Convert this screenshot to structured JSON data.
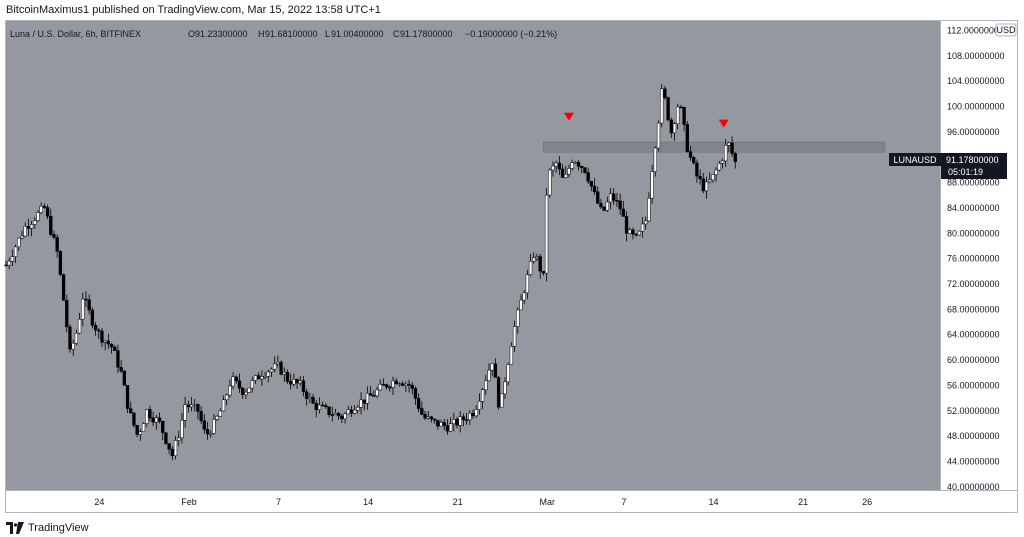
{
  "header": {
    "published": "BitcoinMaximus1 published on TradingView.com, Mar 15, 2022 13:58 UTC+1"
  },
  "footer": {
    "brand": "TradingView"
  },
  "colors": {
    "background": "#9598a1",
    "zone": "#7d8089",
    "marker": "#ff0000",
    "up": "#ffffff",
    "down": "#000000"
  },
  "chart_data": {
    "type": "candlestick",
    "symbol": "Luna / U.S. Dollar, 6h, BITFINEX",
    "ohlc_label": {
      "O": "O",
      "o": "91.23300000",
      "H": "H",
      "h": "91.68100000",
      "L": "L",
      "l": "91.00400000",
      "C": "C",
      "c": "91.17800000",
      "change": "−0.19000000 (−0.21%)"
    },
    "currency": "USD",
    "price_label": {
      "ticker": "LUNAUSD",
      "price": "91.17800000",
      "countdown": "05:01:19"
    },
    "y_ticks": [
      "40.00000000",
      "44.00000000",
      "48.00000000",
      "52.00000000",
      "56.00000000",
      "60.00000000",
      "64.00000000",
      "68.00000000",
      "72.00000000",
      "76.00000000",
      "80.00000000",
      "84.00000000",
      "88.00000000",
      "92.00000000",
      "96.00000000",
      "100.00000000",
      "104.00000000",
      "108.00000000",
      "112.00000000"
    ],
    "ylim": [
      39.5,
      113.5
    ],
    "x_ticks": [
      {
        "label": "24",
        "t": 3.3
      },
      {
        "label": "Feb",
        "t": 10.3
      },
      {
        "label": "7",
        "t": 17.3
      },
      {
        "label": "14",
        "t": 24.3
      },
      {
        "label": "21",
        "t": 31.3
      },
      {
        "label": "Mar",
        "t": 38.3
      },
      {
        "label": "7",
        "t": 44.3
      },
      {
        "label": "14",
        "t": 51.3
      },
      {
        "label": "21",
        "t": 58.3
      },
      {
        "label": "26",
        "t": 63.3
      }
    ],
    "xlim": [
      -4.0,
      69.0
    ],
    "resistance_zone": {
      "low": 92.8,
      "high": 94.4,
      "from_t": 38.0,
      "to_t": 64.7
    },
    "markers": [
      {
        "t": 40.0,
        "price": 98.4
      },
      {
        "t": 52.1,
        "price": 97.3
      }
    ],
    "close_path": [
      [
        -4.0,
        75.0
      ],
      [
        -2.5,
        81.0
      ],
      [
        -1.0,
        84.0
      ],
      [
        0.0,
        77.0
      ],
      [
        0.6,
        68.0
      ],
      [
        1.0,
        61.0
      ],
      [
        1.6,
        65.0
      ],
      [
        2.0,
        70.0
      ],
      [
        2.8,
        66.0
      ],
      [
        3.3,
        64.0
      ],
      [
        4.3,
        62.0
      ],
      [
        5.0,
        58.0
      ],
      [
        5.6,
        52.0
      ],
      [
        6.3,
        48.0
      ],
      [
        7.0,
        52.0
      ],
      [
        8.0,
        50.0
      ],
      [
        8.6,
        47.0
      ],
      [
        9.0,
        45.0
      ],
      [
        9.6,
        49.0
      ],
      [
        10.0,
        53.0
      ],
      [
        11.0,
        52.0
      ],
      [
        11.6,
        48.0
      ],
      [
        12.3,
        50.0
      ],
      [
        13.0,
        53.0
      ],
      [
        13.6,
        57.0
      ],
      [
        14.6,
        55.0
      ],
      [
        16.0,
        58.0
      ],
      [
        17.3,
        59.0
      ],
      [
        18.0,
        57.0
      ],
      [
        19.0,
        56.0
      ],
      [
        20.0,
        53.0
      ],
      [
        21.0,
        52.0
      ],
      [
        22.3,
        51.0
      ],
      [
        23.3,
        53.0
      ],
      [
        24.3,
        54.0
      ],
      [
        25.6,
        56.0
      ],
      [
        26.6,
        57.0
      ],
      [
        27.6,
        56.0
      ],
      [
        28.6,
        51.0
      ],
      [
        29.6,
        50.0
      ],
      [
        30.6,
        49.5
      ],
      [
        31.6,
        50.5
      ],
      [
        32.6,
        52.0
      ],
      [
        33.3,
        56.0
      ],
      [
        34.0,
        60.0
      ],
      [
        34.6,
        52.0
      ],
      [
        35.0,
        57.0
      ],
      [
        35.6,
        64.0
      ],
      [
        36.6,
        72.0
      ],
      [
        37.3,
        77.0
      ],
      [
        38.0,
        73.0
      ],
      [
        38.3,
        89.0
      ],
      [
        39.0,
        91.0
      ],
      [
        39.6,
        88.0
      ],
      [
        40.3,
        92.0
      ],
      [
        41.3,
        90.0
      ],
      [
        42.0,
        86.0
      ],
      [
        42.6,
        83.0
      ],
      [
        43.3,
        86.0
      ],
      [
        44.0,
        84.0
      ],
      [
        44.6,
        80.0
      ],
      [
        45.3,
        79.0
      ],
      [
        46.0,
        82.0
      ],
      [
        46.6,
        92.0
      ],
      [
        47.0,
        98.0
      ],
      [
        47.3,
        103.0
      ],
      [
        48.0,
        96.0
      ],
      [
        48.6,
        101.0
      ],
      [
        49.3,
        93.0
      ],
      [
        50.0,
        89.0
      ],
      [
        50.6,
        87.0
      ],
      [
        51.3,
        89.0
      ],
      [
        52.0,
        92.0
      ],
      [
        52.4,
        94.5
      ],
      [
        53.0,
        91.2
      ]
    ]
  }
}
